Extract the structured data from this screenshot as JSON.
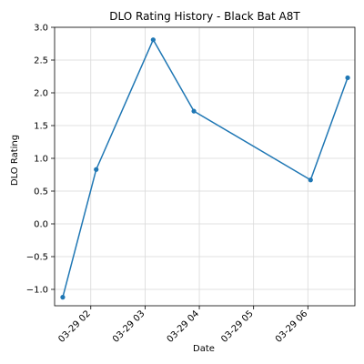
{
  "chart_data": {
    "type": "line",
    "title": "DLO Rating History - Black Bat A8T",
    "xlabel": "Date",
    "ylabel": "DLO Rating",
    "x": [
      "03-29 01:29",
      "03-29 02:06",
      "03-29 03:09",
      "03-29 03:54",
      "03-29 06:03",
      "03-29 06:44"
    ],
    "series": [
      {
        "values": [
          -1.12,
          0.83,
          2.81,
          1.72,
          0.67,
          2.23
        ]
      }
    ],
    "xticks": [
      "03-29 02",
      "03-29 03",
      "03-29 04",
      "03-29 05",
      "03-29 06"
    ],
    "yticks": [
      "−1.0",
      "−0.5",
      "0.0",
      "0.5",
      "1.0",
      "1.5",
      "2.0",
      "2.5",
      "3.0"
    ],
    "ylim": [
      -1.25,
      3.0
    ],
    "xlim": [
      "03-29 01:20",
      "03-29 06:52"
    ],
    "grid": true,
    "colors": {
      "line": "#1f77b4",
      "grid": "#d9d9d9",
      "axes": "#000000"
    }
  }
}
